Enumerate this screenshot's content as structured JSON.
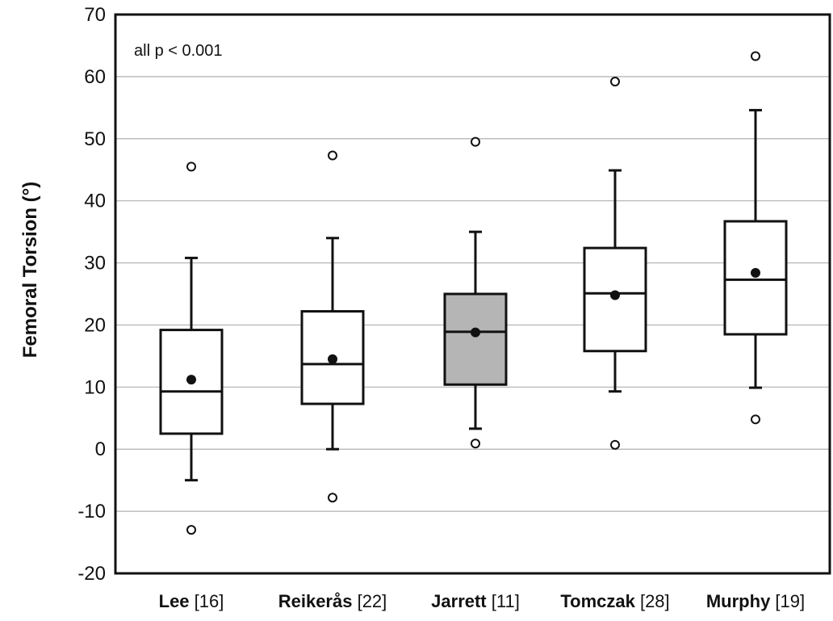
{
  "chart_data": {
    "type": "box",
    "ylabel": "Femoral Torsion (°)",
    "xlabel": "",
    "ylim": [
      -20,
      70
    ],
    "yticks": [
      -20,
      -10,
      0,
      10,
      20,
      30,
      40,
      50,
      60,
      70
    ],
    "grid": "horizontal",
    "annotation": "all p < 0.001",
    "colors": {
      "box_default": "#ffffff",
      "box_highlight": "#b5b5b5",
      "stroke": "#111111",
      "grid": "#b0b0b0"
    },
    "categories": [
      {
        "name": "Lee",
        "ref": "[16]",
        "whisker_low": -5,
        "q1": 2.5,
        "median": 9.3,
        "q3": 19.2,
        "whisker_high": 30.8,
        "mean": 11.2,
        "outliers": [
          45.5,
          -13
        ],
        "highlight": false
      },
      {
        "name": "Reikerås",
        "ref": "[22]",
        "whisker_low": 0,
        "q1": 7.3,
        "median": 13.7,
        "q3": 22.2,
        "whisker_high": 34,
        "mean": 14.5,
        "outliers": [
          47.3,
          -7.8
        ],
        "highlight": false
      },
      {
        "name": "Jarrett",
        "ref": "[11]",
        "whisker_low": 3.3,
        "q1": 10.4,
        "median": 18.9,
        "q3": 25,
        "whisker_high": 35,
        "mean": 18.8,
        "outliers": [
          49.5,
          0.9
        ],
        "highlight": true
      },
      {
        "name": "Tomczak",
        "ref": "[28]",
        "whisker_low": 9.3,
        "q1": 15.8,
        "median": 25.1,
        "q3": 32.4,
        "whisker_high": 44.9,
        "mean": 24.8,
        "outliers": [
          59.2,
          0.7
        ],
        "highlight": false
      },
      {
        "name": "Murphy",
        "ref": "[19]",
        "whisker_low": 9.9,
        "q1": 18.5,
        "median": 27.3,
        "q3": 36.7,
        "whisker_high": 54.6,
        "mean": 28.4,
        "outliers": [
          63.3,
          4.8
        ],
        "highlight": false
      }
    ]
  }
}
